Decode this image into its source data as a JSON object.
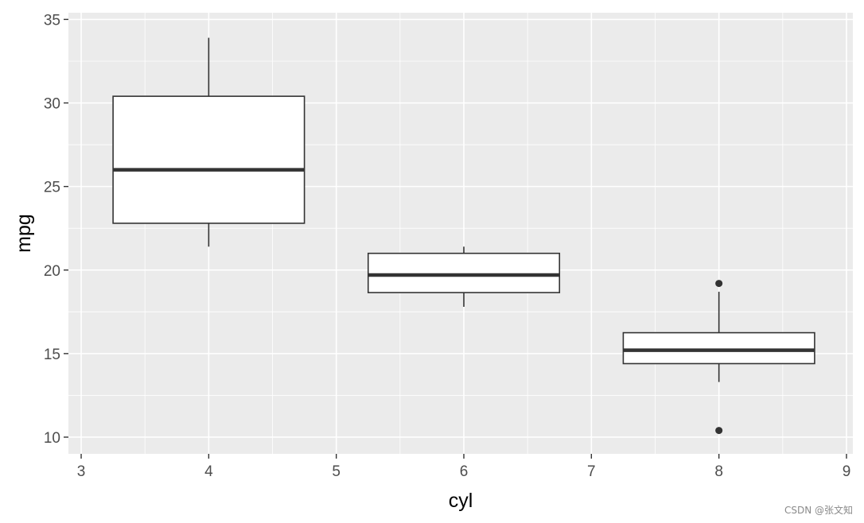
{
  "chart_data": {
    "type": "boxplot",
    "title": "",
    "xlabel": "cyl",
    "ylabel": "mpg",
    "xlim": [
      2.9,
      9.05
    ],
    "ylim": [
      9.0,
      35.4
    ],
    "x_ticks": [
      3,
      4,
      5,
      6,
      7,
      8,
      9
    ],
    "y_ticks": [
      10,
      15,
      20,
      25,
      30,
      35
    ],
    "grid": true,
    "legend": "none",
    "box_halfwidth": 0.75,
    "boxes": [
      {
        "x": 4,
        "whisker_low": 21.4,
        "q1": 22.8,
        "median": 26.0,
        "q3": 30.4,
        "whisker_high": 33.9,
        "outliers": []
      },
      {
        "x": 6,
        "whisker_low": 17.8,
        "q1": 18.65,
        "median": 19.7,
        "q3": 21.0,
        "whisker_high": 21.4,
        "outliers": []
      },
      {
        "x": 8,
        "whisker_low": 13.3,
        "q1": 14.4,
        "median": 15.2,
        "q3": 16.25,
        "whisker_high": 18.7,
        "outliers": [
          10.4,
          19.2
        ]
      }
    ],
    "colors": {
      "panel": "#ebebeb",
      "grid": "#ffffff",
      "box_fill": "#ffffff",
      "box_line": "#333333",
      "axis_text": "#4d4d4d"
    }
  },
  "watermark": "CSDN @张文知"
}
